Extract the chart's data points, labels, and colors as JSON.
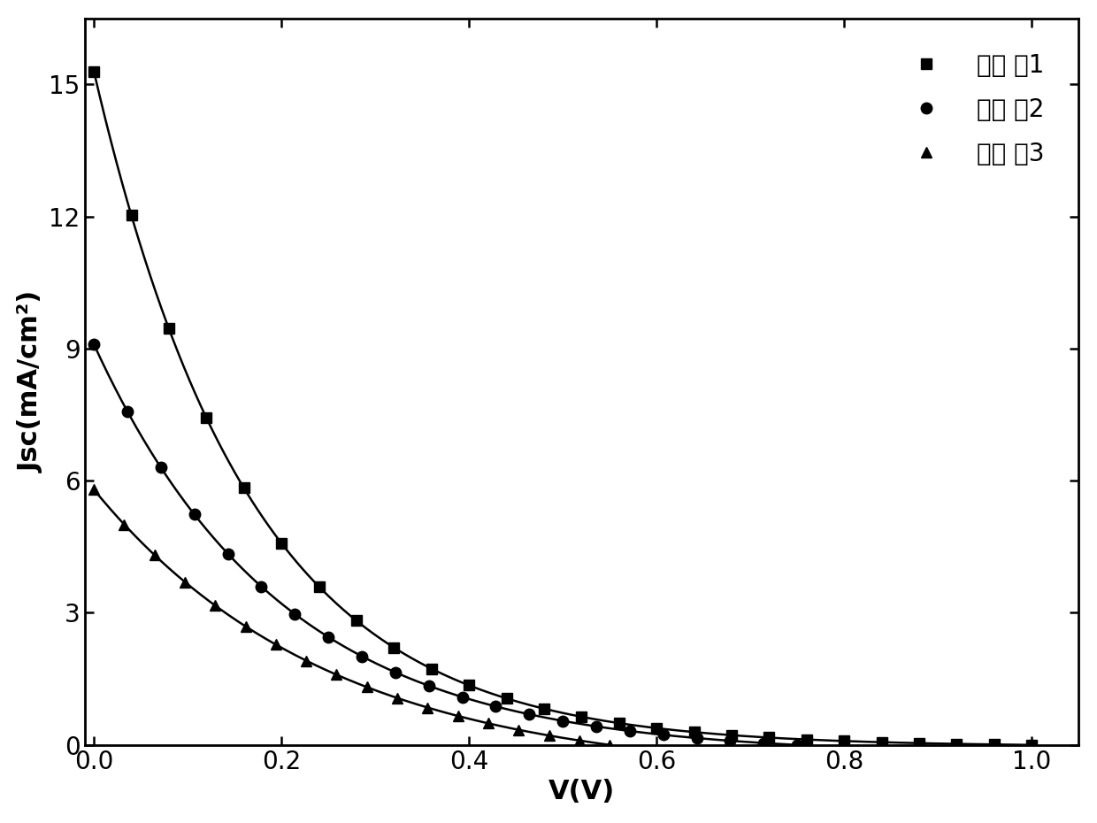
{
  "title": "",
  "xlabel": "V(V)",
  "ylabel": "Jsc(mA/cm²)",
  "xlim": [
    -0.01,
    1.05
  ],
  "ylim": [
    0.0,
    16.5
  ],
  "xticks": [
    0.0,
    0.2,
    0.4,
    0.6,
    0.8,
    1.0
  ],
  "yticks": [
    0,
    3,
    6,
    9,
    12,
    15
  ],
  "series": [
    {
      "label": "实施 例1",
      "marker": "s",
      "color": "#000000",
      "Jsc": 15.3,
      "Voc": 1.0,
      "sharpness": 6,
      "num_markers": 26
    },
    {
      "label": "实施 例2",
      "marker": "o",
      "color": "#000000",
      "Jsc": 9.1,
      "Voc": 0.75,
      "sharpness": 5,
      "num_markers": 22
    },
    {
      "label": "实施 例3",
      "marker": "^",
      "color": "#000000",
      "Jsc": 5.8,
      "Voc": 0.55,
      "sharpness": 4,
      "num_markers": 18
    }
  ],
  "legend_loc": "upper right",
  "background_color": "#ffffff",
  "markersize": 9,
  "linewidth": 1.8
}
